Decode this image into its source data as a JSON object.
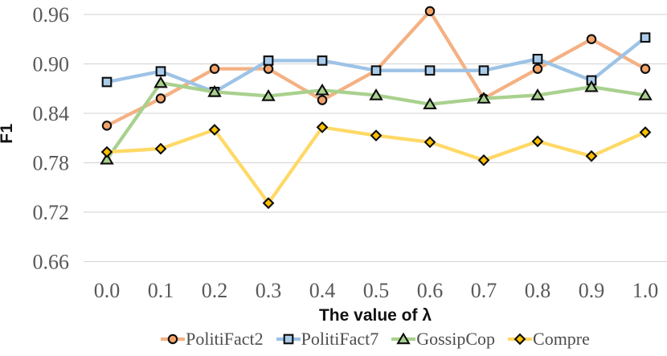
{
  "chart_data": {
    "type": "line",
    "xlabel": "The value of λ",
    "ylabel": "F1",
    "x": [
      0.0,
      0.1,
      0.2,
      0.3,
      0.4,
      0.5,
      0.6,
      0.7,
      0.8,
      0.9,
      1.0
    ],
    "x_tick_labels": [
      "0.0",
      "0.1",
      "0.2",
      "0.3",
      "0.4",
      "0.5",
      "0.6",
      "0.7",
      "0.8",
      "0.9",
      "1.0"
    ],
    "y_tick_labels": [
      "0.96",
      "0.90",
      "0.84",
      "0.78",
      "0.72",
      "0.66"
    ],
    "y_tick_values": [
      0.96,
      0.9,
      0.84,
      0.78,
      0.72,
      0.66
    ],
    "ylim": [
      0.66,
      0.96
    ],
    "grid": "horizontal",
    "legend_position": "bottom",
    "series": [
      {
        "name": "PolitiFact2",
        "marker": "circle",
        "color": "#F4B183",
        "marker_fill": "#F2A369",
        "values": [
          0.825,
          0.858,
          0.894,
          0.894,
          0.856,
          0.892,
          0.964,
          0.858,
          0.894,
          0.93,
          0.894
        ]
      },
      {
        "name": "PolitiFact7",
        "marker": "square",
        "color": "#9DC3E6",
        "marker_fill": "#A9CCEA",
        "values": [
          0.878,
          0.891,
          0.866,
          0.904,
          0.904,
          0.892,
          0.892,
          0.892,
          0.906,
          0.88,
          0.932
        ]
      },
      {
        "name": "GossipCop",
        "marker": "triangle",
        "color": "#A9D18E",
        "marker_fill": "#A9D18E",
        "values": [
          0.784,
          0.877,
          0.866,
          0.861,
          0.868,
          0.862,
          0.851,
          0.858,
          0.862,
          0.872,
          0.862
        ]
      },
      {
        "name": "Compre",
        "marker": "diamond",
        "color": "#FFD966",
        "marker_fill": "#FFC000",
        "values": [
          0.793,
          0.797,
          0.82,
          0.731,
          0.823,
          0.813,
          0.805,
          0.783,
          0.806,
          0.788,
          0.817
        ]
      }
    ],
    "colors": {
      "grid": "#D9D9D9",
      "tick_text": "#595959",
      "axis_title_text": "#111111",
      "marker_stroke": "#0D0D0D",
      "background": "#FFFFFF"
    }
  }
}
